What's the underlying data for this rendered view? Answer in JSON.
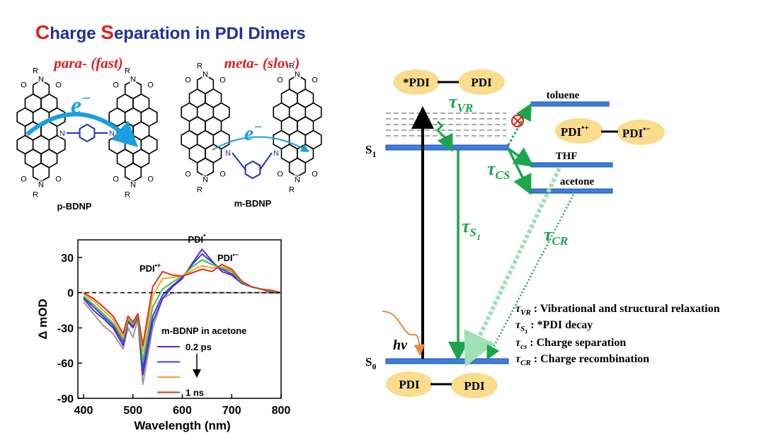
{
  "title_parts": [
    "C",
    "harge ",
    "S",
    "eparation  in PDI Dimers"
  ],
  "molecules": [
    {
      "label": "para- (fast)",
      "name": "p-BDNP",
      "electron": {
        "base": "e",
        "sup": "−"
      },
      "atoms": [
        "R",
        "N",
        "O",
        "O",
        "N",
        "R",
        "O",
        "O",
        "R",
        "N",
        "O",
        "O",
        "N",
        "R",
        "O",
        "O",
        "N",
        "N"
      ]
    },
    {
      "label": "meta- (slow)",
      "name": "m-BDNP",
      "electron": {
        "base": "e",
        "sup": "−"
      },
      "atoms": [
        "R",
        "N",
        "O",
        "O",
        "N",
        "R",
        "O",
        "O",
        "R",
        "N",
        "O",
        "O",
        "N",
        "R",
        "O",
        "O",
        "N",
        "N"
      ]
    }
  ],
  "chart_data": {
    "type": "line",
    "x_label": "Wavelength (nm)",
    "y_label": "Δ mOD",
    "xlim": [
      400,
      800
    ],
    "ylim": [
      -90,
      45
    ],
    "xticks": [
      400,
      500,
      600,
      700,
      800
    ],
    "yticks": [
      -90,
      -60,
      -30,
      0,
      30
    ],
    "zero_line": true,
    "legend_title": "m-BDNP in acetone",
    "annotations": [
      {
        "base": "PDI",
        "sup": "*"
      },
      {
        "base": "PDI",
        "sup": "•+"
      },
      {
        "base": "PDI",
        "sup": "•−"
      }
    ],
    "x": [
      400,
      420,
      440,
      460,
      480,
      490,
      500,
      510,
      520,
      540,
      560,
      580,
      600,
      620,
      640,
      660,
      680,
      700,
      720,
      740,
      760,
      780,
      800
    ],
    "series": [
      {
        "name": null,
        "color": "#999999",
        "in_legend": false,
        "values": [
          -8,
          -18,
          -28,
          -35,
          -48,
          -30,
          -38,
          -22,
          -78,
          -30,
          -5,
          0,
          0,
          0,
          0,
          0,
          0,
          0,
          0,
          0,
          0,
          0,
          0
        ]
      },
      {
        "name": "0.2 ps",
        "color": "#6a1fd1",
        "in_legend": true,
        "values": [
          -5,
          -15,
          -22,
          -30,
          -45,
          -25,
          -30,
          -20,
          -70,
          -25,
          -5,
          5,
          12,
          25,
          37,
          27,
          18,
          15,
          8,
          5,
          3,
          0,
          0
        ]
      },
      {
        "name": null,
        "color": "#2b44d8",
        "in_legend": true,
        "values": [
          -4,
          -12,
          -20,
          -28,
          -42,
          -24,
          -28,
          -19,
          -65,
          -20,
          -2,
          6,
          13,
          24,
          33,
          26,
          20,
          16,
          8,
          5,
          3,
          1,
          0
        ]
      },
      {
        "name": null,
        "color": "#3fc43f",
        "in_legend": false,
        "values": [
          -3,
          -10,
          -18,
          -26,
          -40,
          -23,
          -27,
          -19,
          -58,
          -12,
          3,
          9,
          14,
          22,
          28,
          24,
          21,
          18,
          9,
          5,
          3,
          1,
          0
        ]
      },
      {
        "name": null,
        "color": "#f5a623",
        "in_legend": true,
        "values": [
          -1,
          -7,
          -15,
          -23,
          -38,
          -21,
          -26,
          -18,
          -50,
          -3,
          12,
          13,
          14,
          19,
          23,
          21,
          22,
          19,
          10,
          5,
          3,
          2,
          0
        ]
      },
      {
        "name": "1 ns",
        "color": "#e0301e",
        "in_legend": true,
        "values": [
          0,
          -5,
          -12,
          -20,
          -35,
          -20,
          -25,
          -18,
          -45,
          5,
          18,
          15,
          14,
          17,
          20,
          18,
          24,
          20,
          10,
          5,
          3,
          2,
          0
        ]
      }
    ]
  },
  "energy": {
    "top_pair": [
      "*PDI",
      "PDI"
    ],
    "bottom_pair": [
      "PDI",
      "PDI"
    ],
    "ion_pair": [
      {
        "base": "PDI",
        "sup": "•+"
      },
      {
        "base": "PDI",
        "sup": "•−"
      }
    ],
    "s1": {
      "base": "S",
      "sub": "1"
    },
    "s0": {
      "base": "S",
      "sub": "0"
    },
    "solvents": [
      "toluene",
      "THF",
      "acetone"
    ],
    "hv": "hν",
    "rates": [
      {
        "sym": "τ",
        "sub": "VR"
      },
      {
        "sym": "τ",
        "sub": "CS"
      },
      {
        "sym": "τ",
        "sub": "S",
        "subsub": "1"
      },
      {
        "sym": "τ",
        "sub": "CR"
      }
    ],
    "key": [
      {
        "sym": "τ",
        "sub": "VR",
        "text": " : Vibrational and structural relaxation"
      },
      {
        "sym": "τ",
        "sub": "S",
        "subsub": "1",
        "text": " : *PDI decay"
      },
      {
        "sym": "τ",
        "sub": "cs",
        "text": " :  Charge separation"
      },
      {
        "sym": "τ",
        "sub": "CR",
        "text": " : Charge recombination"
      }
    ]
  }
}
